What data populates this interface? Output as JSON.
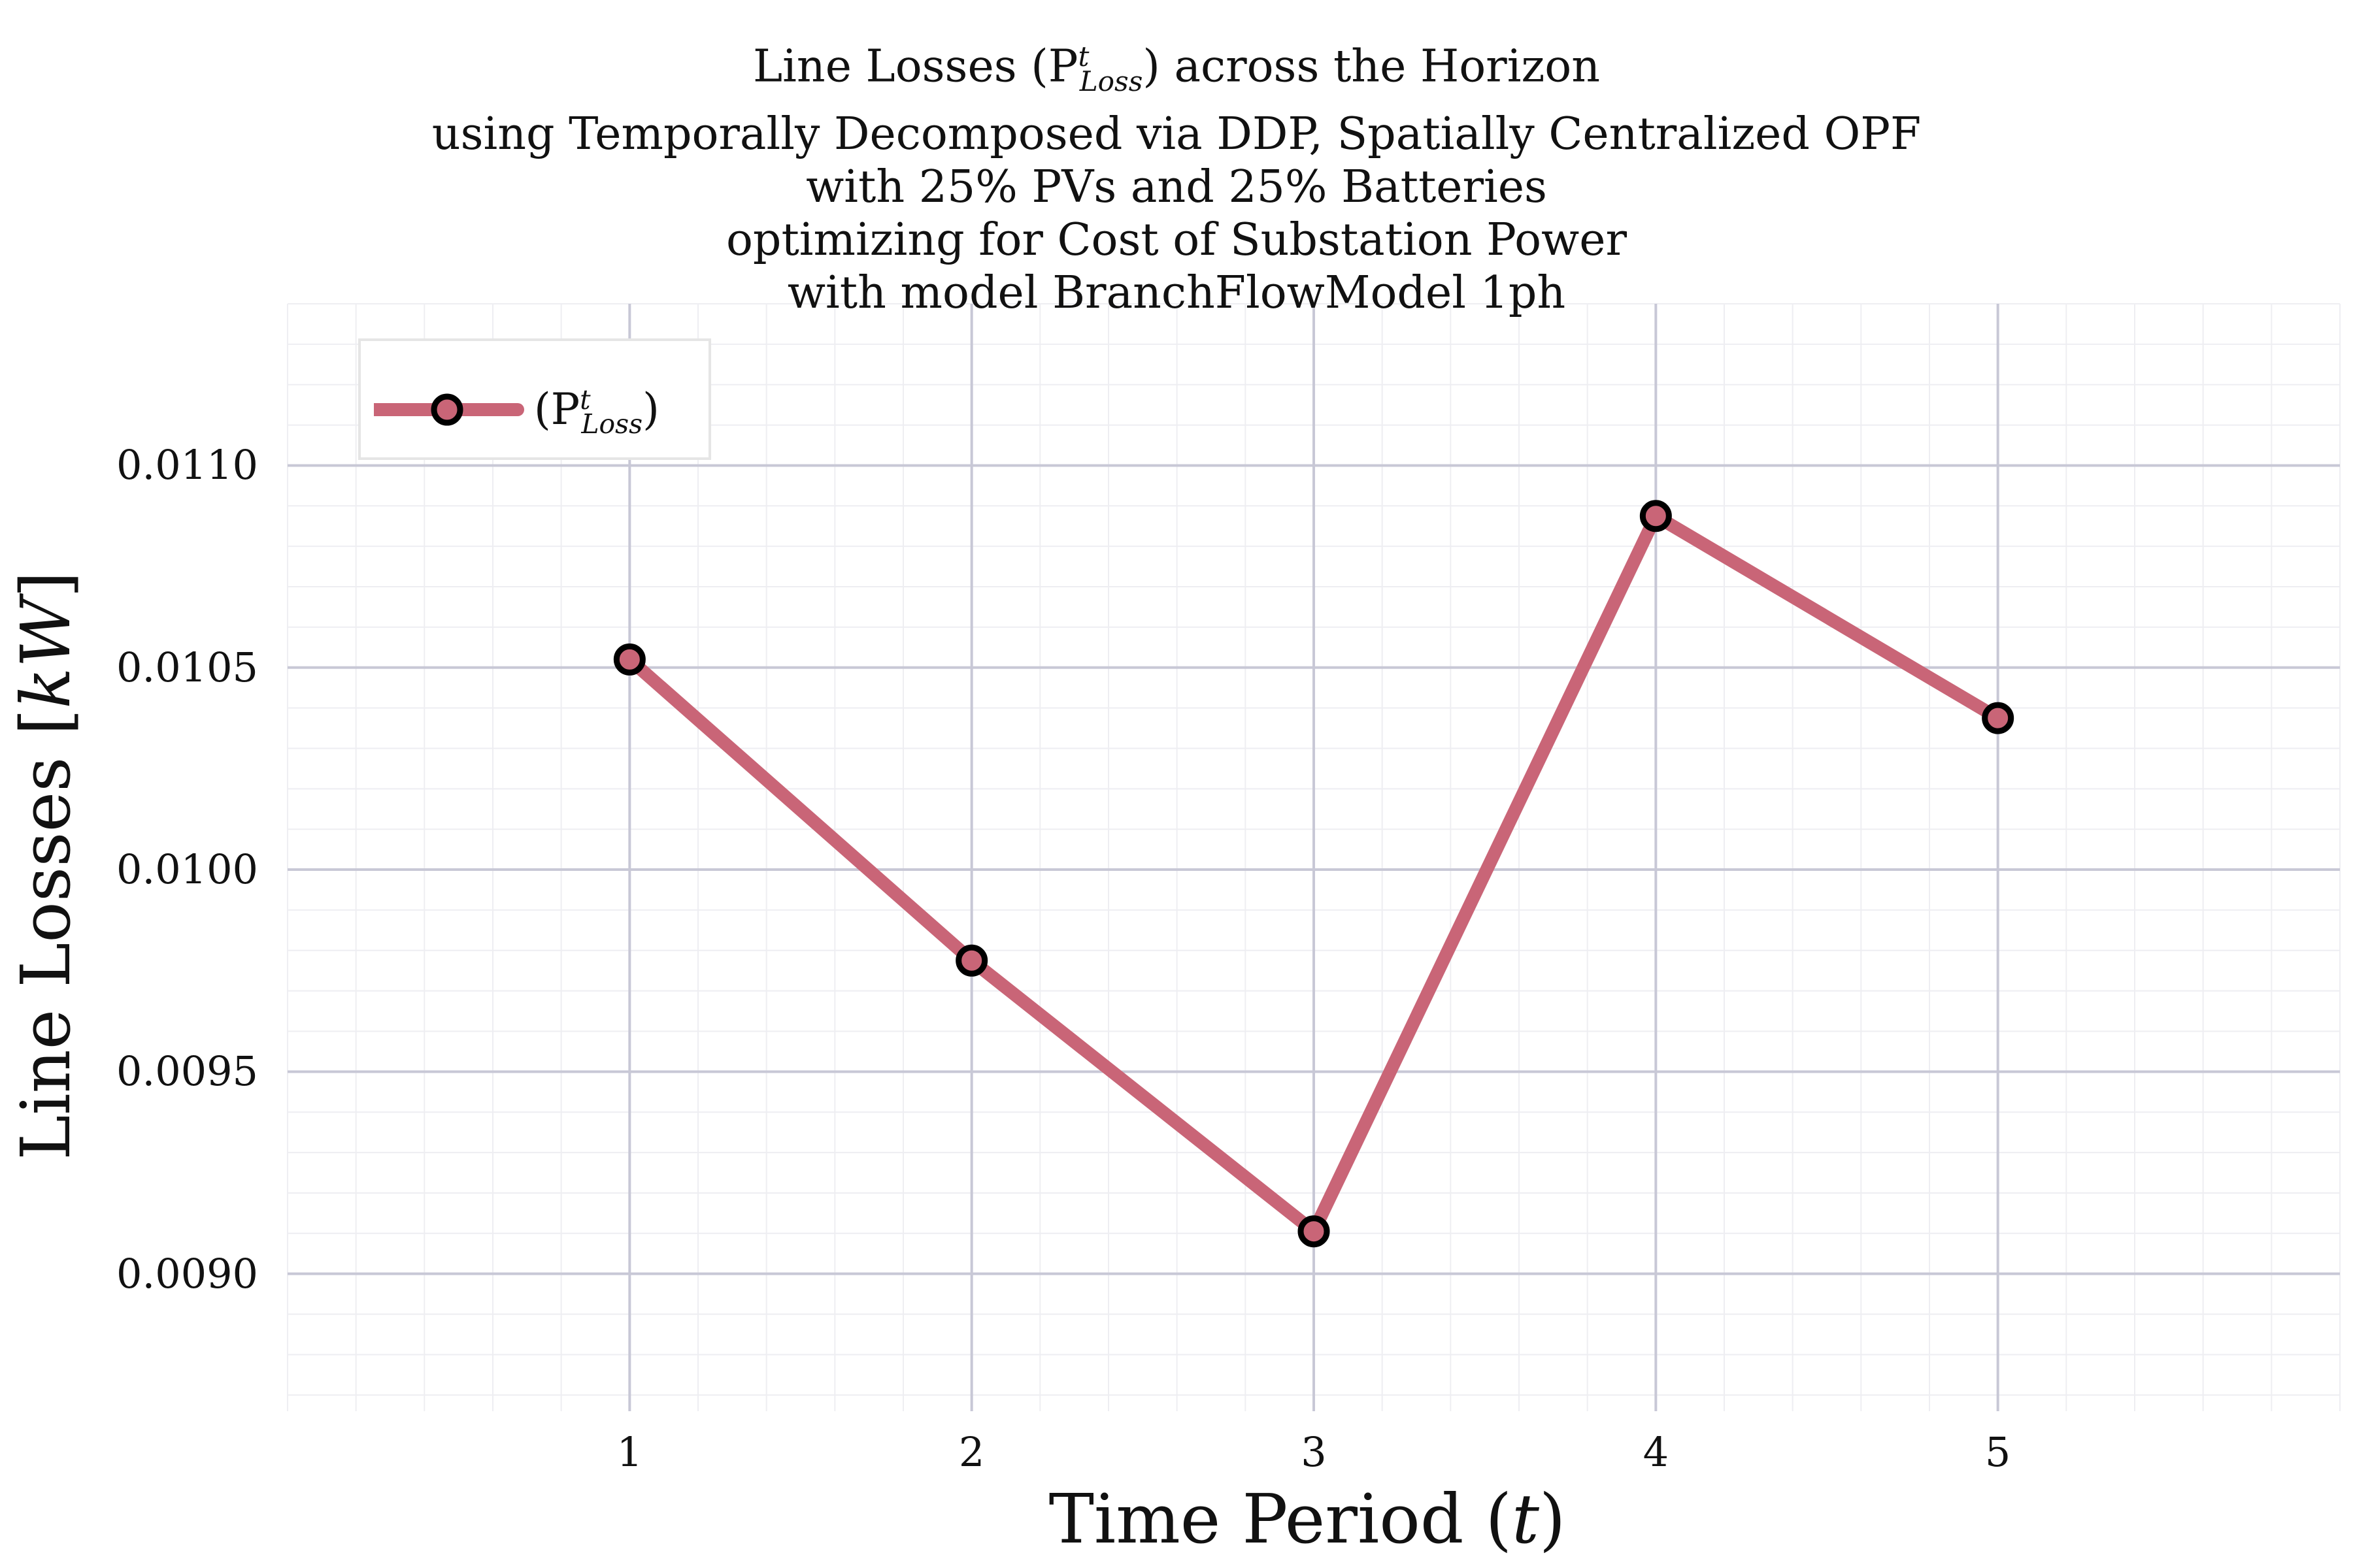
{
  "chart_data": {
    "type": "line",
    "title_lines": [
      "Line Losses (P",
      "using Temporally Decomposed via DDP, Spatially Centralized OPF",
      "with 25% PVs and 25% Batteries",
      "optimizing for Cost of Substation Power",
      "with model BranchFlowModel 1ph"
    ],
    "title_math": {
      "sup": "t",
      "sub": "Loss",
      "tail": ") across the Horizon"
    },
    "xlabel_text": "Time Period (",
    "xlabel_var": "t",
    "xlabel_close": ")",
    "ylabel_text": "Line Losses [",
    "ylabel_var": "kW",
    "ylabel_close": "]",
    "x": [
      1,
      2,
      3,
      4,
      5
    ],
    "x_ticks": [
      "1",
      "2",
      "3",
      "4",
      "5"
    ],
    "y_ticks": [
      "0.0090",
      "0.0095",
      "0.0100",
      "0.0105",
      "0.0110"
    ],
    "y_tick_values": [
      0.009,
      0.0095,
      0.01,
      0.0105,
      0.011
    ],
    "xlim": [
      0.0,
      6.0
    ],
    "ylim": [
      0.00866,
      0.0114
    ],
    "series": [
      {
        "name_open": "(P",
        "name_sup": "t",
        "name_sub": "Loss",
        "name_close": ")",
        "values": [
          0.01052,
          0.009775,
          0.009105,
          0.010875,
          0.010375
        ],
        "color": "#c96577",
        "marker_edge": "#000000"
      }
    ],
    "grid": true,
    "legend_position": "top-left"
  }
}
